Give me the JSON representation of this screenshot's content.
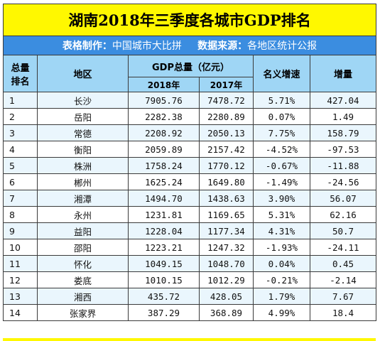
{
  "title": "湖南2018年三季度各城市GDP排名",
  "subtitle": {
    "maker_label": "表格制作：",
    "maker_value": "中国城市大比拼",
    "source_label": "数据来源：",
    "source_value": "各地区统计公报"
  },
  "headers": {
    "rank": "总量\n排名",
    "rank_line1": "总量",
    "rank_line2": "排名",
    "region": "地区",
    "gdp_total": "GDP总量（亿元）",
    "y2018": "2018年",
    "y2017": "2017年",
    "growth": "名义增速",
    "increase": "增量"
  },
  "rows": [
    {
      "rank": "1",
      "region": "长沙",
      "gdp2018": "7905.76",
      "gdp2017": "7478.72",
      "growth": "5.71%",
      "increase": "427.04"
    },
    {
      "rank": "2",
      "region": "岳阳",
      "gdp2018": "2282.38",
      "gdp2017": "2280.89",
      "growth": "0.07%",
      "increase": "1.49"
    },
    {
      "rank": "3",
      "region": "常德",
      "gdp2018": "2208.92",
      "gdp2017": "2050.13",
      "growth": "7.75%",
      "increase": "158.79"
    },
    {
      "rank": "4",
      "region": "衡阳",
      "gdp2018": "2059.89",
      "gdp2017": "2157.42",
      "growth": "-4.52%",
      "increase": "-97.53"
    },
    {
      "rank": "5",
      "region": "株洲",
      "gdp2018": "1758.24",
      "gdp2017": "1770.12",
      "growth": "-0.67%",
      "increase": "-11.88"
    },
    {
      "rank": "6",
      "region": "郴州",
      "gdp2018": "1625.24",
      "gdp2017": "1649.80",
      "growth": "-1.49%",
      "increase": "-24.56"
    },
    {
      "rank": "7",
      "region": "湘潭",
      "gdp2018": "1494.70",
      "gdp2017": "1438.63",
      "growth": "3.90%",
      "increase": "56.07"
    },
    {
      "rank": "8",
      "region": "永州",
      "gdp2018": "1231.81",
      "gdp2017": "1169.65",
      "growth": "5.31%",
      "increase": "62.16"
    },
    {
      "rank": "9",
      "region": "益阳",
      "gdp2018": "1228.04",
      "gdp2017": "1177.34",
      "growth": "4.31%",
      "increase": "50.7"
    },
    {
      "rank": "10",
      "region": "邵阳",
      "gdp2018": "1223.21",
      "gdp2017": "1247.32",
      "growth": "-1.93%",
      "increase": "-24.11"
    },
    {
      "rank": "11",
      "region": "怀化",
      "gdp2018": "1049.15",
      "gdp2017": "1048.70",
      "growth": "0.04%",
      "increase": "0.45"
    },
    {
      "rank": "12",
      "region": "娄底",
      "gdp2018": "1010.15",
      "gdp2017": "1012.29",
      "growth": "-0.21%",
      "increase": "-2.14"
    },
    {
      "rank": "13",
      "region": "湘西",
      "gdp2018": "435.72",
      "gdp2017": "428.05",
      "growth": "1.79%",
      "increase": "7.67"
    },
    {
      "rank": "14",
      "region": "张家界",
      "gdp2018": "387.29",
      "gdp2017": "368.89",
      "growth": "4.99%",
      "increase": "18.4"
    }
  ],
  "colors": {
    "title_bg": "#fff800",
    "subtitle_bg": "#3b8de0",
    "header_bg": "#9fd6f5",
    "row_alt_bg": "#eaf6fd"
  }
}
